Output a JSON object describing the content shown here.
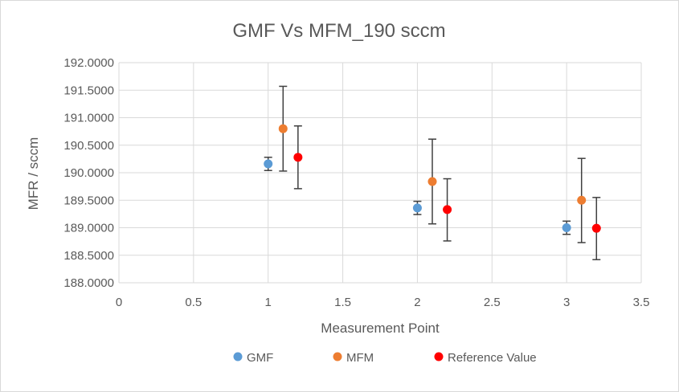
{
  "chart_data": {
    "type": "scatter",
    "title": "GMF Vs MFM_190 sccm",
    "xlabel": "Measurement Point",
    "ylabel": "MFR / sccm",
    "xlim": [
      0,
      3.5
    ],
    "ylim": [
      188.0,
      192.0
    ],
    "x_ticks": [
      "0",
      "0.5",
      "1",
      "1.5",
      "2",
      "2.5",
      "3",
      "3.5"
    ],
    "y_ticks": [
      "188.0000",
      "188.5000",
      "189.0000",
      "189.5000",
      "190.0000",
      "190.5000",
      "191.0000",
      "191.5000",
      "192.0000"
    ],
    "grid": true,
    "legend_position": "bottom",
    "series": [
      {
        "name": "GMF",
        "color": "#5b9bd5",
        "points": [
          {
            "x": 1.0,
            "y": 190.16,
            "err_low": 190.04,
            "err_high": 190.28
          },
          {
            "x": 2.0,
            "y": 189.36,
            "err_low": 189.24,
            "err_high": 189.48
          },
          {
            "x": 3.0,
            "y": 189.0,
            "err_low": 188.88,
            "err_high": 189.12
          }
        ]
      },
      {
        "name": "MFM",
        "color": "#ed7d31",
        "points": [
          {
            "x": 1.1,
            "y": 190.8,
            "err_low": 190.03,
            "err_high": 191.57
          },
          {
            "x": 2.1,
            "y": 189.84,
            "err_low": 189.07,
            "err_high": 190.61
          },
          {
            "x": 3.1,
            "y": 189.5,
            "err_low": 188.73,
            "err_high": 190.26
          }
        ]
      },
      {
        "name": "Reference Value",
        "color": "#ff0000",
        "points": [
          {
            "x": 1.2,
            "y": 190.28,
            "err_low": 189.71,
            "err_high": 190.85
          },
          {
            "x": 2.2,
            "y": 189.33,
            "err_low": 188.76,
            "err_high": 189.89
          },
          {
            "x": 3.2,
            "y": 188.99,
            "err_low": 188.42,
            "err_high": 189.55
          }
        ]
      }
    ]
  }
}
